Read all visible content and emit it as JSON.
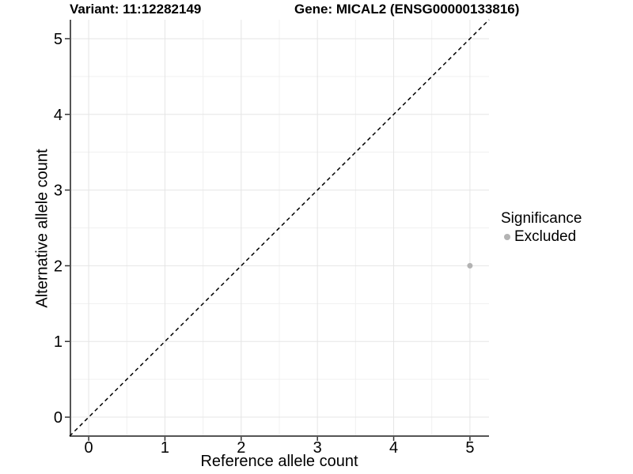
{
  "header": {
    "variant_title": "Variant: 11:12282149",
    "gene_title": "Gene: MICAL2 (ENSG00000133816)"
  },
  "axes": {
    "x_label": "Reference allele count",
    "y_label": "Alternative allele count"
  },
  "legend": {
    "title": "Significance",
    "items": [
      {
        "label": "Excluded",
        "color": "#b3b3b3"
      }
    ]
  },
  "colors": {
    "background": "#ffffff",
    "grid_major": "#e5e5e5",
    "grid_minor": "#f0f0f0",
    "axis_line": "#555555",
    "tick_mark": "#333333",
    "reference_line": "#000000",
    "point": "#b3b3b3"
  },
  "chart_data": {
    "type": "scatter",
    "title": "Variant: 11:12282149  Gene: MICAL2 (ENSG00000133816)",
    "xlabel": "Reference allele count",
    "ylabel": "Alternative allele count",
    "xlim": [
      -0.25,
      5.25
    ],
    "ylim": [
      -0.25,
      5.25
    ],
    "x_ticks": [
      0,
      1,
      2,
      3,
      4,
      5
    ],
    "y_ticks": [
      0,
      1,
      2,
      3,
      4,
      5
    ],
    "grid": true,
    "legend_position": "right",
    "legend_title": "Significance",
    "series": [
      {
        "name": "Excluded",
        "color": "#b3b3b3",
        "points": [
          [
            5,
            2
          ]
        ]
      }
    ],
    "reference_line": {
      "type": "identity",
      "style": "dashed",
      "color": "#000000"
    }
  }
}
